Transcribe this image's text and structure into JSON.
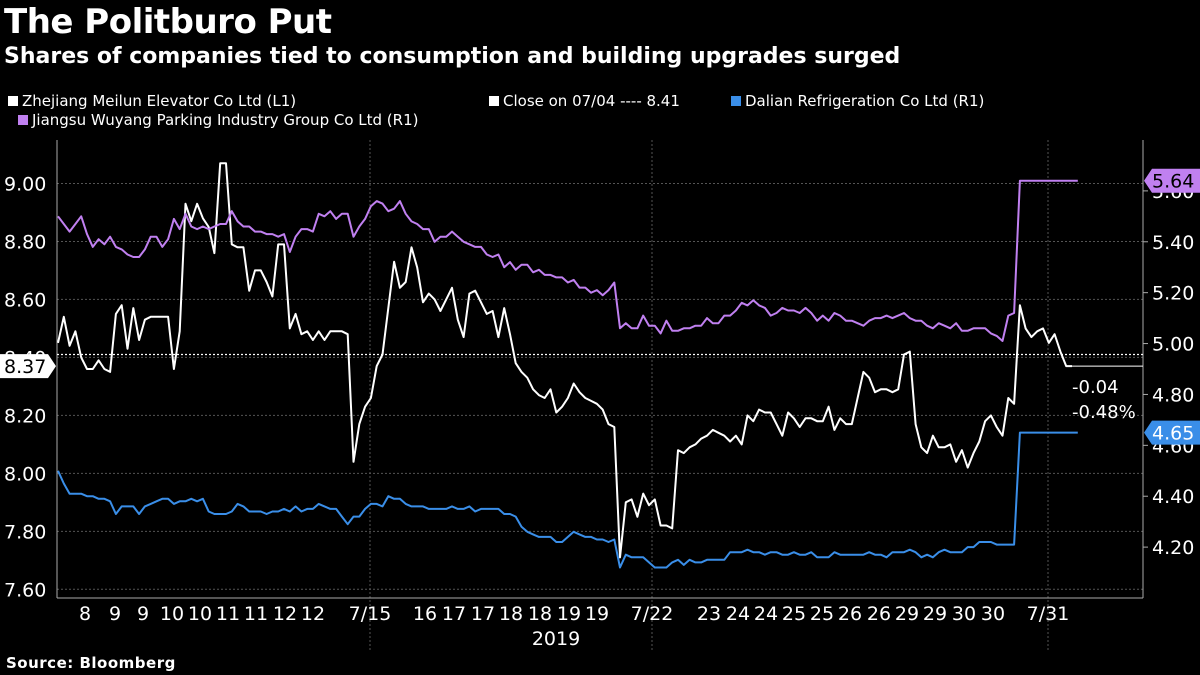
{
  "chart_data": {
    "type": "line",
    "title": "The Politburo Put",
    "subtitle": "Shares of companies tied to consumption and building upgrades surged",
    "source": "Source: Bloomberg",
    "x_tick_labels": [
      "8",
      "9",
      "9",
      "10",
      "10",
      "11",
      "11",
      "12",
      "12",
      "7/15",
      "16",
      "17",
      "17",
      "18",
      "18",
      "19",
      "19",
      "7/22",
      "23",
      "24",
      "24",
      "25",
      "25",
      "26",
      "26",
      "29",
      "29",
      "30",
      "30",
      "7/31"
    ],
    "x_year_label": "2019",
    "left_axis": {
      "ylim": [
        7.57,
        9.15
      ],
      "ticks": [
        "7.60",
        "7.80",
        "8.00",
        "8.20",
        "8.40",
        "8.60",
        "8.80",
        "9.00"
      ]
    },
    "right_axis": {
      "ylim": [
        4.0,
        5.8
      ],
      "ticks": [
        "4.20",
        "4.40",
        "4.60",
        "4.80",
        "5.00",
        "5.20",
        "5.40",
        "5.60"
      ]
    },
    "reference_line": {
      "label": "Close on 07/04 ---- 8.41",
      "value": 8.41
    },
    "last_value_tags": {
      "meilun": "8.37",
      "wuyang": "5.64",
      "dalian": "4.65",
      "change_abs": "-0.04",
      "change_pct": "-0.48%"
    },
    "colors": {
      "meilun": "#ffffff",
      "wuyang": "#c080f0",
      "dalian": "#3a8ee8",
      "grid": "#555555"
    },
    "series": [
      {
        "key": "meilun",
        "name": "Zhejiang Meilun Elevator Co Ltd  (L1)",
        "axis": "left",
        "values": [
          8.45,
          8.54,
          8.44,
          8.49,
          8.4,
          8.36,
          8.36,
          8.39,
          8.36,
          8.35,
          8.55,
          8.58,
          8.43,
          8.57,
          8.46,
          8.53,
          8.54,
          8.54,
          8.54,
          8.54,
          8.36,
          8.49,
          8.93,
          8.87,
          8.93,
          8.88,
          8.85,
          8.76,
          9.07,
          9.07,
          8.79,
          8.78,
          8.78,
          8.63,
          8.7,
          8.7,
          8.66,
          8.61,
          8.79,
          8.79,
          8.5,
          8.55,
          8.48,
          8.49,
          8.46,
          8.49,
          8.46,
          8.49,
          8.49,
          8.49,
          8.48,
          8.04,
          8.17,
          8.23,
          8.26,
          8.37,
          8.41,
          8.57,
          8.73,
          8.64,
          8.66,
          8.78,
          8.71,
          8.59,
          8.62,
          8.6,
          8.56,
          8.6,
          8.64,
          8.53,
          8.47,
          8.62,
          8.63,
          8.59,
          8.55,
          8.56,
          8.47,
          8.57,
          8.48,
          8.38,
          8.35,
          8.33,
          8.29,
          8.27,
          8.26,
          8.29,
          8.21,
          8.23,
          8.26,
          8.31,
          8.28,
          8.26,
          8.25,
          8.24,
          8.22,
          8.17,
          8.16,
          7.71,
          7.9,
          7.91,
          7.85,
          7.93,
          7.89,
          7.91,
          7.82,
          7.82,
          7.81,
          8.08,
          8.07,
          8.09,
          8.1,
          8.12,
          8.13,
          8.15,
          8.14,
          8.13,
          8.11,
          8.13,
          8.1,
          8.2,
          8.18,
          8.22,
          8.21,
          8.21,
          8.17,
          8.13,
          8.21,
          8.19,
          8.16,
          8.19,
          8.19,
          8.18,
          8.18,
          8.23,
          8.15,
          8.19,
          8.17,
          8.17,
          8.26,
          8.35,
          8.33,
          8.28,
          8.29,
          8.29,
          8.28,
          8.29,
          8.41,
          8.42,
          8.17,
          8.09,
          8.07,
          8.13,
          8.09,
          8.09,
          8.1,
          8.04,
          8.08,
          8.02,
          8.07,
          8.11,
          8.18,
          8.2,
          8.16,
          8.13,
          8.26,
          8.24,
          8.58,
          8.5,
          8.47,
          8.49,
          8.5,
          8.45,
          8.48,
          8.42,
          8.37,
          8.37
        ]
      },
      {
        "key": "wuyang",
        "name": "Jiangsu Wuyang Parking Industry Group Co Ltd  (R1)",
        "axis": "right",
        "values": [
          5.5,
          5.47,
          5.44,
          5.47,
          5.5,
          5.43,
          5.38,
          5.41,
          5.39,
          5.42,
          5.38,
          5.37,
          5.35,
          5.34,
          5.34,
          5.37,
          5.42,
          5.42,
          5.38,
          5.41,
          5.49,
          5.45,
          5.51,
          5.46,
          5.45,
          5.46,
          5.45,
          5.46,
          5.47,
          5.47,
          5.52,
          5.48,
          5.46,
          5.46,
          5.44,
          5.44,
          5.43,
          5.43,
          5.42,
          5.43,
          5.36,
          5.42,
          5.45,
          5.45,
          5.44,
          5.51,
          5.5,
          5.52,
          5.49,
          5.51,
          5.51,
          5.42,
          5.46,
          5.49,
          5.54,
          5.56,
          5.55,
          5.52,
          5.53,
          5.56,
          5.51,
          5.48,
          5.47,
          5.45,
          5.45,
          5.4,
          5.42,
          5.42,
          5.44,
          5.42,
          5.4,
          5.39,
          5.38,
          5.38,
          5.35,
          5.34,
          5.35,
          5.3,
          5.32,
          5.29,
          5.31,
          5.31,
          5.28,
          5.29,
          5.27,
          5.27,
          5.26,
          5.26,
          5.24,
          5.25,
          5.22,
          5.22,
          5.2,
          5.21,
          5.19,
          5.21,
          5.24,
          5.06,
          5.08,
          5.06,
          5.06,
          5.11,
          5.07,
          5.07,
          5.04,
          5.09,
          5.05,
          5.05,
          5.06,
          5.06,
          5.07,
          5.07,
          5.1,
          5.08,
          5.08,
          5.11,
          5.11,
          5.13,
          5.16,
          5.15,
          5.17,
          5.15,
          5.14,
          5.11,
          5.12,
          5.14,
          5.13,
          5.13,
          5.12,
          5.14,
          5.12,
          5.09,
          5.11,
          5.09,
          5.12,
          5.11,
          5.09,
          5.09,
          5.08,
          5.07,
          5.09,
          5.1,
          5.1,
          5.11,
          5.1,
          5.11,
          5.12,
          5.1,
          5.09,
          5.09,
          5.07,
          5.06,
          5.08,
          5.07,
          5.06,
          5.08,
          5.05,
          5.05,
          5.06,
          5.06,
          5.06,
          5.04,
          5.03,
          5.01,
          5.11,
          5.12,
          5.64,
          5.64,
          5.64,
          5.64,
          5.64,
          5.64,
          5.64,
          5.64,
          5.64,
          5.64,
          5.64
        ]
      },
      {
        "key": "dalian",
        "name": "Dalian Refrigeration Co Ltd  (R1)",
        "axis": "right",
        "values": [
          4.5,
          4.45,
          4.41,
          4.41,
          4.41,
          4.4,
          4.4,
          4.39,
          4.39,
          4.38,
          4.33,
          4.36,
          4.36,
          4.36,
          4.33,
          4.36,
          4.37,
          4.38,
          4.39,
          4.39,
          4.37,
          4.38,
          4.38,
          4.39,
          4.38,
          4.39,
          4.34,
          4.33,
          4.33,
          4.33,
          4.34,
          4.37,
          4.36,
          4.34,
          4.34,
          4.34,
          4.33,
          4.34,
          4.34,
          4.35,
          4.34,
          4.36,
          4.34,
          4.35,
          4.35,
          4.37,
          4.36,
          4.35,
          4.35,
          4.32,
          4.29,
          4.32,
          4.32,
          4.35,
          4.37,
          4.37,
          4.36,
          4.4,
          4.39,
          4.39,
          4.37,
          4.36,
          4.36,
          4.36,
          4.35,
          4.35,
          4.35,
          4.35,
          4.36,
          4.35,
          4.35,
          4.36,
          4.34,
          4.35,
          4.35,
          4.35,
          4.35,
          4.33,
          4.33,
          4.32,
          4.28,
          4.26,
          4.25,
          4.24,
          4.24,
          4.24,
          4.22,
          4.22,
          4.24,
          4.26,
          4.25,
          4.24,
          4.24,
          4.23,
          4.23,
          4.22,
          4.23,
          4.12,
          4.17,
          4.16,
          4.16,
          4.16,
          4.14,
          4.12,
          4.12,
          4.12,
          4.14,
          4.15,
          4.13,
          4.15,
          4.14,
          4.14,
          4.15,
          4.15,
          4.15,
          4.15,
          4.18,
          4.18,
          4.18,
          4.19,
          4.18,
          4.18,
          4.17,
          4.18,
          4.18,
          4.17,
          4.17,
          4.18,
          4.17,
          4.17,
          4.18,
          4.16,
          4.16,
          4.16,
          4.18,
          4.17,
          4.17,
          4.17,
          4.17,
          4.17,
          4.18,
          4.17,
          4.17,
          4.16,
          4.18,
          4.18,
          4.18,
          4.19,
          4.18,
          4.16,
          4.17,
          4.16,
          4.18,
          4.19,
          4.18,
          4.18,
          4.18,
          4.2,
          4.2,
          4.22,
          4.22,
          4.22,
          4.21,
          4.21,
          4.21,
          4.21,
          4.65,
          4.65,
          4.65,
          4.65,
          4.65,
          4.65,
          4.65,
          4.65,
          4.65,
          4.65,
          4.65
        ]
      }
    ]
  }
}
